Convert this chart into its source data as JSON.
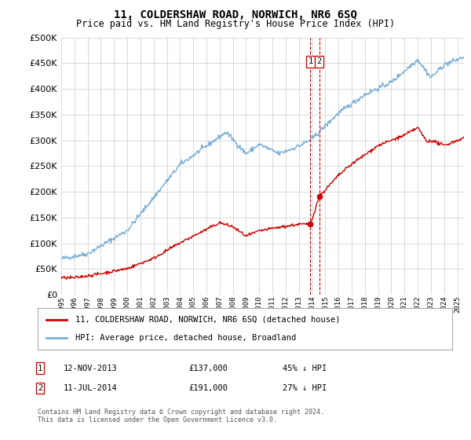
{
  "title": "11, COLDERSHAW ROAD, NORWICH, NR6 6SQ",
  "subtitle": "Price paid vs. HM Land Registry's House Price Index (HPI)",
  "ylim": [
    0,
    500000
  ],
  "yticks": [
    0,
    50000,
    100000,
    150000,
    200000,
    250000,
    300000,
    350000,
    400000,
    450000,
    500000
  ],
  "hpi_color": "#7aaed6",
  "price_color": "#cc0000",
  "vline_color": "#cc0000",
  "marker1_date_x": 2013.87,
  "marker2_date_x": 2014.54,
  "marker1_y": 137000,
  "marker2_y": 191000,
  "transaction1": {
    "num": "1",
    "date": "12-NOV-2013",
    "price": "£137,000",
    "vs_hpi": "45% ↓ HPI"
  },
  "transaction2": {
    "num": "2",
    "date": "11-JUL-2014",
    "price": "£191,000",
    "vs_hpi": "27% ↓ HPI"
  },
  "legend_label_red": "11, COLDERSHAW ROAD, NORWICH, NR6 6SQ (detached house)",
  "legend_label_blue": "HPI: Average price, detached house, Broadland",
  "footnote": "Contains HM Land Registry data © Crown copyright and database right 2024.\nThis data is licensed under the Open Government Licence v3.0.",
  "xmin": 1995,
  "xmax": 2025.5,
  "background_color": "#ffffff",
  "grid_color": "#cccccc"
}
